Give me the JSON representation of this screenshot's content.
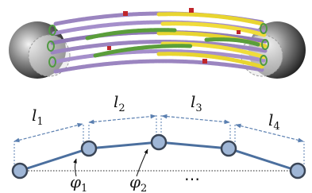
{
  "segments": [
    {
      "symbol": "l",
      "sub": "1"
    },
    {
      "symbol": "l",
      "sub": "2"
    },
    {
      "symbol": "l",
      "sub": "3"
    },
    {
      "symbol": "l",
      "sub": "4"
    }
  ],
  "angles": [
    {
      "symbol": "φ",
      "sub": "1"
    },
    {
      "symbol": "φ",
      "sub": "2"
    }
  ],
  "ellipsis": "⋯"
}
